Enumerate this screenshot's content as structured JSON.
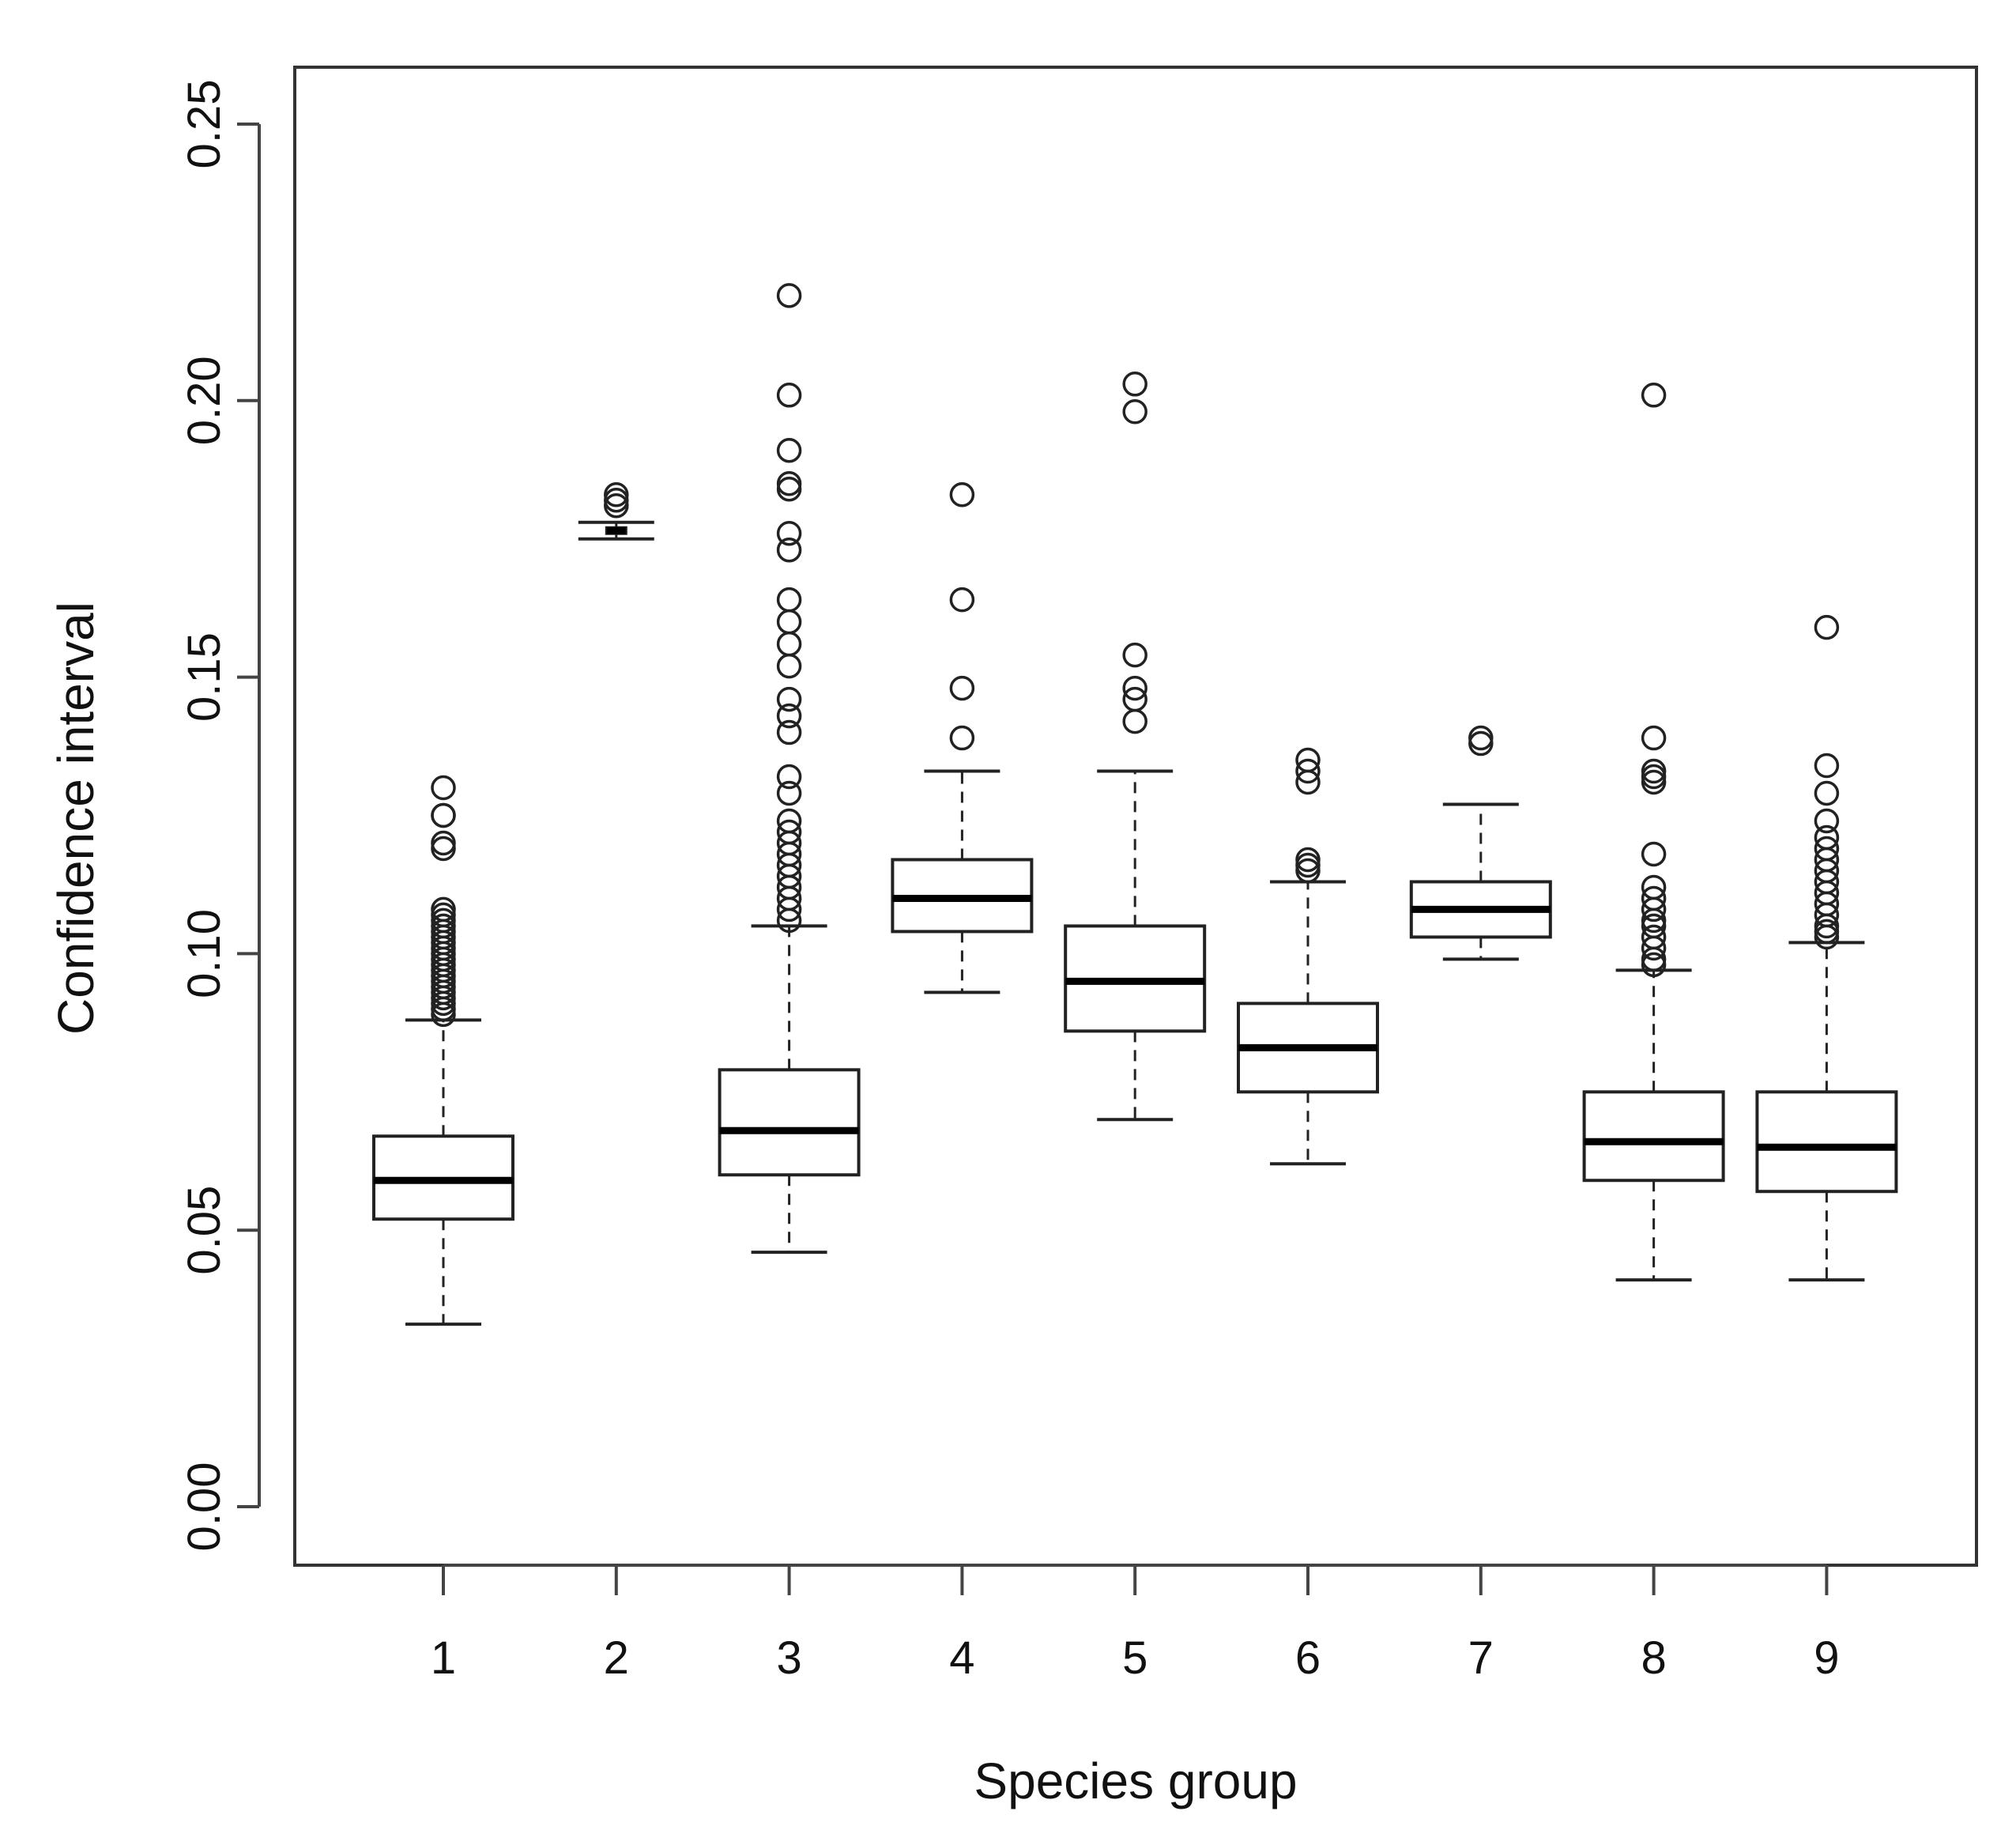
{
  "chart_data": {
    "type": "boxplot",
    "title": "",
    "xlabel": "Species group",
    "ylabel": "Confidence interval",
    "ylim": [
      0.0,
      0.25
    ],
    "grid": false,
    "yticks": [
      "0.00",
      "0.05",
      "0.10",
      "0.15",
      "0.20",
      "0.25"
    ],
    "ytick_values": [
      0.0,
      0.05,
      0.1,
      0.15,
      0.2,
      0.25
    ],
    "categories": [
      "1",
      "2",
      "3",
      "4",
      "5",
      "6",
      "7",
      "8",
      "9"
    ],
    "boxes": [
      {
        "group": "1",
        "whisker_low": 0.033,
        "q1": 0.052,
        "median": 0.059,
        "q3": 0.067,
        "whisker_high": 0.088,
        "outliers": [
          0.13,
          0.125,
          0.125,
          0.12,
          0.119,
          0.108,
          0.107,
          0.106,
          0.105,
          0.104,
          0.103,
          0.102,
          0.101,
          0.1,
          0.099,
          0.098,
          0.097,
          0.096,
          0.095,
          0.094,
          0.093,
          0.092,
          0.091,
          0.09,
          0.089
        ]
      },
      {
        "group": "2",
        "whisker_low": 0.175,
        "q1": 0.176,
        "median": 0.1765,
        "q3": 0.177,
        "whisker_high": 0.178,
        "outliers": [
          0.183,
          0.182,
          0.181
        ]
      },
      {
        "group": "3",
        "whisker_low": 0.046,
        "q1": 0.06,
        "median": 0.068,
        "q3": 0.079,
        "whisker_high": 0.105,
        "outliers": [
          0.219,
          0.201,
          0.191,
          0.185,
          0.184,
          0.176,
          0.173,
          0.164,
          0.16,
          0.156,
          0.152,
          0.146,
          0.143,
          0.14,
          0.132,
          0.129,
          0.124,
          0.122,
          0.12,
          0.118,
          0.116,
          0.114,
          0.112,
          0.11,
          0.108,
          0.106
        ]
      },
      {
        "group": "4",
        "whisker_low": 0.093,
        "q1": 0.104,
        "median": 0.11,
        "q3": 0.117,
        "whisker_high": 0.133,
        "outliers": [
          0.183,
          0.164,
          0.148,
          0.139
        ]
      },
      {
        "group": "5",
        "whisker_low": 0.07,
        "q1": 0.086,
        "median": 0.095,
        "q3": 0.105,
        "whisker_high": 0.133,
        "outliers": [
          0.203,
          0.198,
          0.154,
          0.148,
          0.146,
          0.142
        ]
      },
      {
        "group": "6",
        "whisker_low": 0.062,
        "q1": 0.075,
        "median": 0.083,
        "q3": 0.091,
        "whisker_high": 0.113,
        "outliers": [
          0.135,
          0.133,
          0.131,
          0.117,
          0.116,
          0.115
        ]
      },
      {
        "group": "7",
        "whisker_low": 0.099,
        "q1": 0.103,
        "median": 0.108,
        "q3": 0.113,
        "whisker_high": 0.127,
        "outliers": [
          0.139,
          0.138
        ]
      },
      {
        "group": "8",
        "whisker_low": 0.041,
        "q1": 0.059,
        "median": 0.066,
        "q3": 0.075,
        "whisker_high": 0.097,
        "outliers": [
          0.201,
          0.139,
          0.133,
          0.132,
          0.131,
          0.118,
          0.112,
          0.11,
          0.108,
          0.106,
          0.105,
          0.103,
          0.101,
          0.099,
          0.098
        ]
      },
      {
        "group": "9",
        "whisker_low": 0.041,
        "q1": 0.057,
        "median": 0.065,
        "q3": 0.075,
        "whisker_high": 0.102,
        "outliers": [
          0.159,
          0.134,
          0.129,
          0.124,
          0.121,
          0.119,
          0.117,
          0.115,
          0.113,
          0.111,
          0.109,
          0.107,
          0.105,
          0.104,
          0.103
        ]
      }
    ]
  }
}
